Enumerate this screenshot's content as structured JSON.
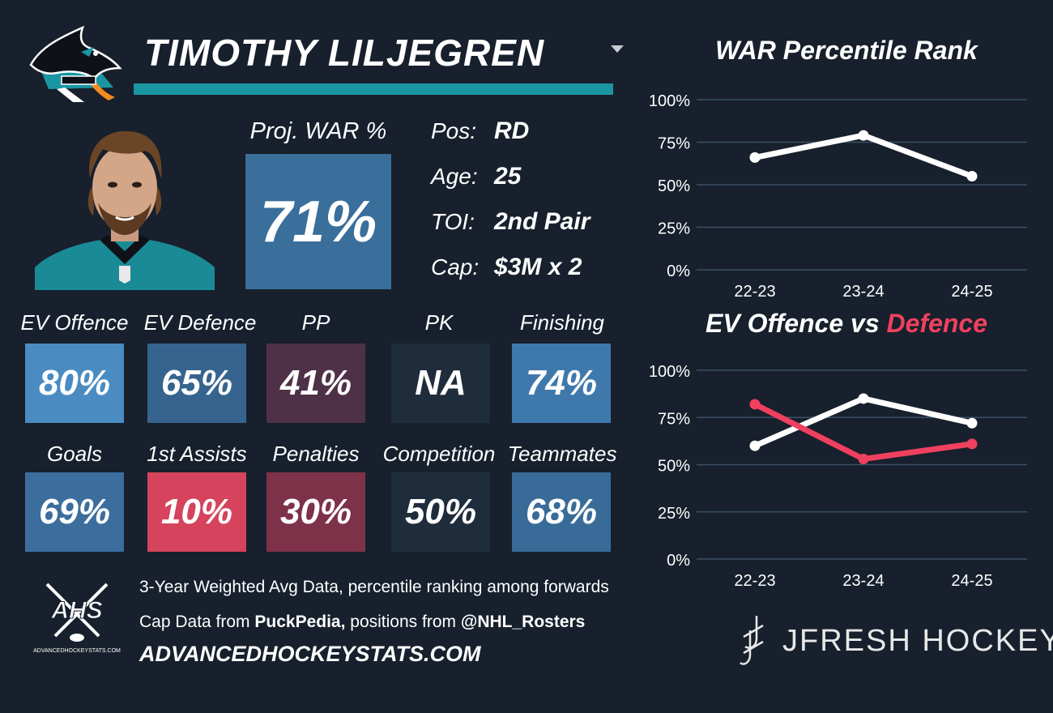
{
  "header": {
    "player_name": "TIMOTHY LILJEGREN"
  },
  "proj_war": {
    "label": "Proj. WAR %",
    "value": "71%"
  },
  "info": [
    {
      "label": "Pos:",
      "value": "RD"
    },
    {
      "label": "Age:",
      "value": "25"
    },
    {
      "label": "TOI:",
      "value": "2nd Pair"
    },
    {
      "label": "Cap:",
      "value": "$3M x 2"
    }
  ],
  "stats_row1": [
    {
      "label": "EV Offence",
      "value": "80%",
      "color": "#4a8cc2"
    },
    {
      "label": "EV Defence",
      "value": "65%",
      "color": "#36648e"
    },
    {
      "label": "PP",
      "value": "41%",
      "color": "#4e3146"
    },
    {
      "label": "PK",
      "value": "NA",
      "color": "#1f2c3b"
    },
    {
      "label": "Finishing",
      "value": "74%",
      "color": "#3f79ab"
    }
  ],
  "stats_row2": [
    {
      "label": "Goals",
      "value": "69%",
      "color": "#3b6e9d"
    },
    {
      "label": "1st Assists",
      "value": "10%",
      "color": "#d5435c"
    },
    {
      "label": "Penalties",
      "value": "30%",
      "color": "#7e3249"
    },
    {
      "label": "Competition",
      "value": "50%",
      "color": "#1f2c3b"
    },
    {
      "label": "Teammates",
      "value": "68%",
      "color": "#396b99"
    }
  ],
  "footer": {
    "line1": "3-Year Weighted Avg Data, percentile ranking among forwards",
    "line2_prefix": "Cap Data from ",
    "line2_source": "PuckPedia,",
    "line2_mid": " positions from ",
    "line2_handle": "@NHL_Rosters",
    "site": "ADVANCEDHOCKEYSTATS.COM",
    "ahs_logo_text": "AHS",
    "ahs_logo_sub": "ADVANCEDHOCKEYSTATS.COM",
    "brand": "JFRESH HOCKEY"
  },
  "chart_data": [
    {
      "type": "line",
      "title": "WAR Percentile Rank",
      "categories": [
        "22-23",
        "23-24",
        "24-25"
      ],
      "yticks": [
        "0%",
        "25%",
        "50%",
        "75%",
        "100%"
      ],
      "ylim": [
        0,
        100
      ],
      "series": [
        {
          "name": "WAR",
          "values": [
            66,
            79,
            55
          ],
          "color": "#ffffff"
        }
      ]
    },
    {
      "type": "line",
      "title_part1": "EV Offence vs ",
      "title_part2": "Defence",
      "title_part2_color": "#f0405f",
      "categories": [
        "22-23",
        "23-24",
        "24-25"
      ],
      "yticks": [
        "0%",
        "25%",
        "50%",
        "75%",
        "100%"
      ],
      "ylim": [
        0,
        100
      ],
      "series": [
        {
          "name": "EV Offence",
          "values": [
            60,
            85,
            72
          ],
          "color": "#ffffff"
        },
        {
          "name": "Defence",
          "values": [
            82,
            53,
            61
          ],
          "color": "#f0405f"
        }
      ]
    }
  ]
}
